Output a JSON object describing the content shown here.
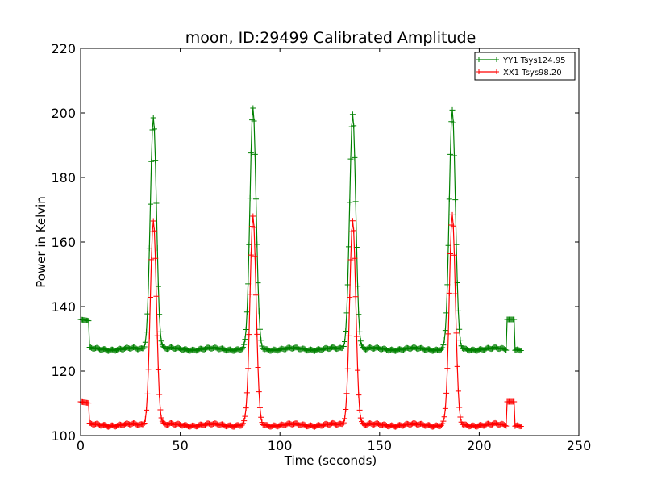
{
  "chart_data": {
    "type": "line",
    "title": "moon, ID:29499 Calibrated Amplitude",
    "xlabel": "Time (seconds)",
    "ylabel": "Power in Kelvin",
    "xlim": [
      0,
      250
    ],
    "ylim": [
      100,
      220
    ],
    "xticks": [
      0,
      50,
      100,
      150,
      200,
      250
    ],
    "yticks": [
      100,
      120,
      140,
      160,
      180,
      200,
      220
    ],
    "grid": false,
    "legend": {
      "placement": "top-right"
    },
    "peak_centers": [
      36.5,
      86.5,
      136.5,
      186.5
    ],
    "series": [
      {
        "name": "YY1 Tsys124.95",
        "color": "#008000",
        "marker": "plus",
        "baseline": 126.8,
        "cal_level": 136,
        "peaks": [
          199,
          201,
          200,
          200.5
        ],
        "x": [
          0,
          4,
          4.5,
          10,
          20,
          30,
          34,
          36.5,
          39,
          43,
          50,
          60,
          70,
          80,
          84,
          86.5,
          89,
          93,
          100,
          110,
          120,
          130,
          134,
          136.5,
          139,
          143,
          150,
          157,
          165,
          175,
          184,
          186.5,
          189,
          193,
          200,
          210,
          213.5,
          214,
          217.5,
          218,
          221
        ],
        "y": [
          136,
          135.5,
          126.5,
          126.5,
          126.3,
          126.5,
          160,
          199,
          160,
          127,
          126.8,
          126.6,
          126.7,
          127,
          160,
          201,
          160,
          127.5,
          127.2,
          127,
          127,
          127.3,
          160,
          200,
          160,
          127.5,
          127.5,
          128.3,
          127.2,
          127,
          160,
          200.5,
          160,
          127,
          126.8,
          126.9,
          126.7,
          136,
          136,
          126.7,
          126.5
        ]
      },
      {
        "name": "XX1 Tsys98.20",
        "color": "#ff0000",
        "marker": "plus",
        "baseline": 103.3,
        "cal_level": 110.5,
        "peaks": [
          167,
          167.5,
          167,
          168
        ],
        "x": [
          0,
          4,
          4.5,
          10,
          20,
          30,
          34,
          36.5,
          39,
          43,
          50,
          60,
          70,
          80,
          84,
          86.5,
          89,
          93,
          100,
          110,
          120,
          130,
          134,
          136.5,
          139,
          143,
          150,
          157,
          165,
          175,
          184,
          186.5,
          189,
          193,
          200,
          210,
          213.5,
          214,
          217.5,
          218,
          221
        ],
        "y": [
          110.5,
          110.5,
          103.2,
          103,
          103.2,
          103.3,
          140,
          167,
          140,
          103.5,
          103,
          102.5,
          102.2,
          103,
          140,
          167.5,
          140,
          103.5,
          103.3,
          103.8,
          103.2,
          102.5,
          140,
          167,
          140,
          103.5,
          103.5,
          103.5,
          103.2,
          103,
          140,
          168,
          140,
          103.5,
          103.3,
          103.3,
          103,
          110.5,
          110.5,
          103,
          103
        ]
      }
    ]
  }
}
